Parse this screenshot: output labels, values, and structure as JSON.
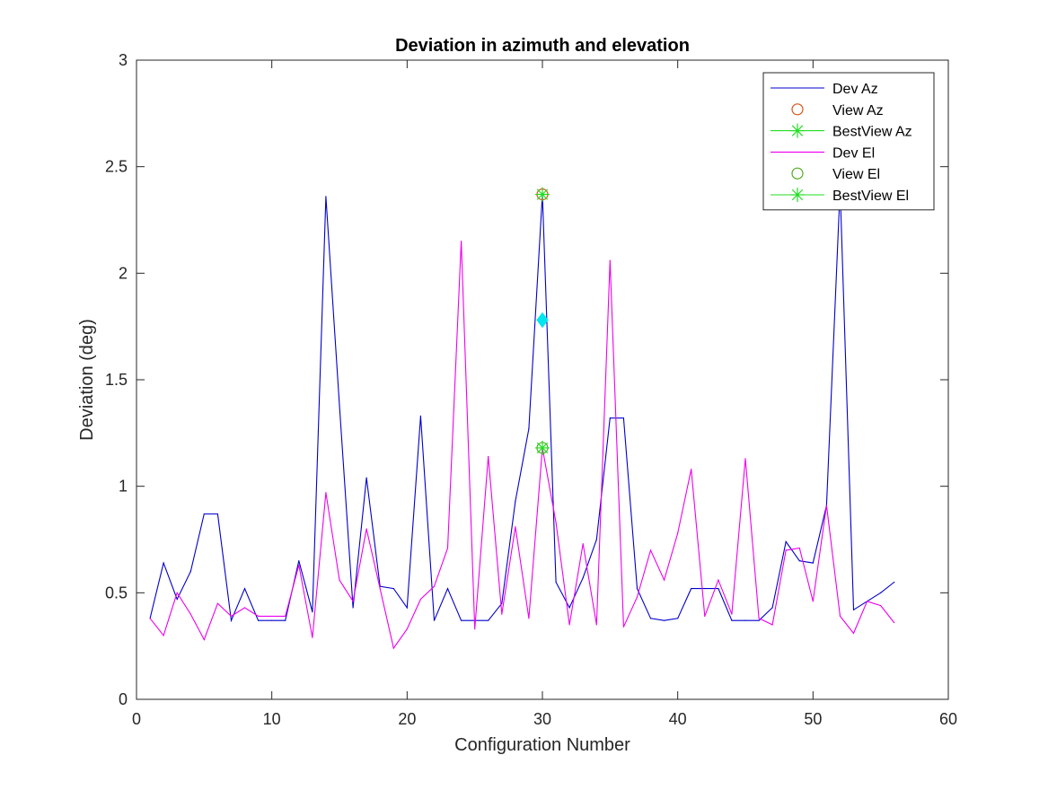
{
  "chart_data": {
    "type": "line",
    "title": "Deviation in azimuth and elevation",
    "xlabel": "Configuration Number",
    "ylabel": "Deviation (deg)",
    "xlim": [
      0,
      60
    ],
    "ylim": [
      0,
      3
    ],
    "xticks": [
      "0",
      "10",
      "20",
      "30",
      "40",
      "50",
      "60"
    ],
    "yticks": [
      "0",
      "0.5",
      "1",
      "1.5",
      "2",
      "2.5",
      "3"
    ],
    "grid": false,
    "legend_position": "top-right",
    "series": [
      {
        "name": "Dev Az",
        "kind": "line",
        "color": "#0000cc",
        "x": [
          1,
          2,
          3,
          4,
          5,
          6,
          7,
          8,
          9,
          10,
          11,
          12,
          13,
          14,
          15,
          16,
          17,
          18,
          19,
          20,
          21,
          22,
          23,
          24,
          25,
          26,
          27,
          28,
          29,
          30,
          31,
          32,
          33,
          34,
          35,
          36,
          37,
          38,
          39,
          40,
          41,
          42,
          43,
          44,
          45,
          46,
          47,
          48,
          49,
          50,
          51,
          52,
          53,
          54,
          55,
          56
        ],
        "y": [
          0.38,
          0.64,
          0.47,
          0.6,
          0.87,
          0.87,
          0.37,
          0.52,
          0.37,
          0.37,
          0.37,
          0.65,
          0.41,
          2.36,
          1.38,
          0.43,
          1.04,
          0.53,
          0.52,
          0.43,
          1.33,
          0.37,
          0.52,
          0.37,
          0.37,
          0.37,
          0.45,
          0.93,
          1.27,
          2.37,
          0.55,
          0.43,
          0.57,
          0.75,
          1.32,
          1.32,
          0.52,
          0.38,
          0.37,
          0.38,
          0.52,
          0.52,
          0.52,
          0.37,
          0.37,
          0.37,
          0.43,
          0.74,
          0.65,
          0.64,
          0.91,
          2.4,
          0.42,
          0.46,
          0.5,
          0.55
        ]
      },
      {
        "name": "View Az",
        "kind": "marker",
        "marker": "circle",
        "color": "#d95319",
        "x": [
          30
        ],
        "y": [
          2.37
        ]
      },
      {
        "name": "BestView Az",
        "kind": "marker",
        "marker": "star",
        "color": "#22dd22",
        "x": [
          30
        ],
        "y": [
          2.37
        ]
      },
      {
        "name": "Dev El",
        "kind": "line",
        "color": "#ee00ee",
        "x": [
          1,
          2,
          3,
          4,
          5,
          6,
          7,
          8,
          9,
          10,
          11,
          12,
          13,
          14,
          15,
          16,
          17,
          18,
          19,
          20,
          21,
          22,
          23,
          24,
          25,
          26,
          27,
          28,
          29,
          30,
          31,
          32,
          33,
          34,
          35,
          36,
          37,
          38,
          39,
          40,
          41,
          42,
          43,
          44,
          45,
          46,
          47,
          48,
          49,
          50,
          51,
          52,
          53,
          54,
          55,
          56
        ],
        "y": [
          0.38,
          0.3,
          0.5,
          0.4,
          0.28,
          0.45,
          0.39,
          0.43,
          0.39,
          0.39,
          0.39,
          0.63,
          0.29,
          0.97,
          0.56,
          0.46,
          0.8,
          0.52,
          0.24,
          0.33,
          0.47,
          0.53,
          0.71,
          2.15,
          0.33,
          1.14,
          0.4,
          0.81,
          0.38,
          1.18,
          0.83,
          0.35,
          0.73,
          0.35,
          2.06,
          0.34,
          0.48,
          0.7,
          0.56,
          0.78,
          1.08,
          0.39,
          0.56,
          0.4,
          1.13,
          0.38,
          0.35,
          0.7,
          0.71,
          0.46,
          0.91,
          0.39,
          0.31,
          0.46,
          0.44,
          0.36
        ]
      },
      {
        "name": "View El",
        "kind": "marker",
        "marker": "circle",
        "color": "#55aa22",
        "x": [
          30
        ],
        "y": [
          1.18
        ]
      },
      {
        "name": "BestView El",
        "kind": "marker",
        "marker": "star",
        "color": "#22dd22",
        "x": [
          30
        ],
        "y": [
          1.18
        ]
      }
    ],
    "extra_markers": [
      {
        "marker": "diamond",
        "color": "#00e5ee",
        "x": 30,
        "y": 1.78
      }
    ]
  }
}
